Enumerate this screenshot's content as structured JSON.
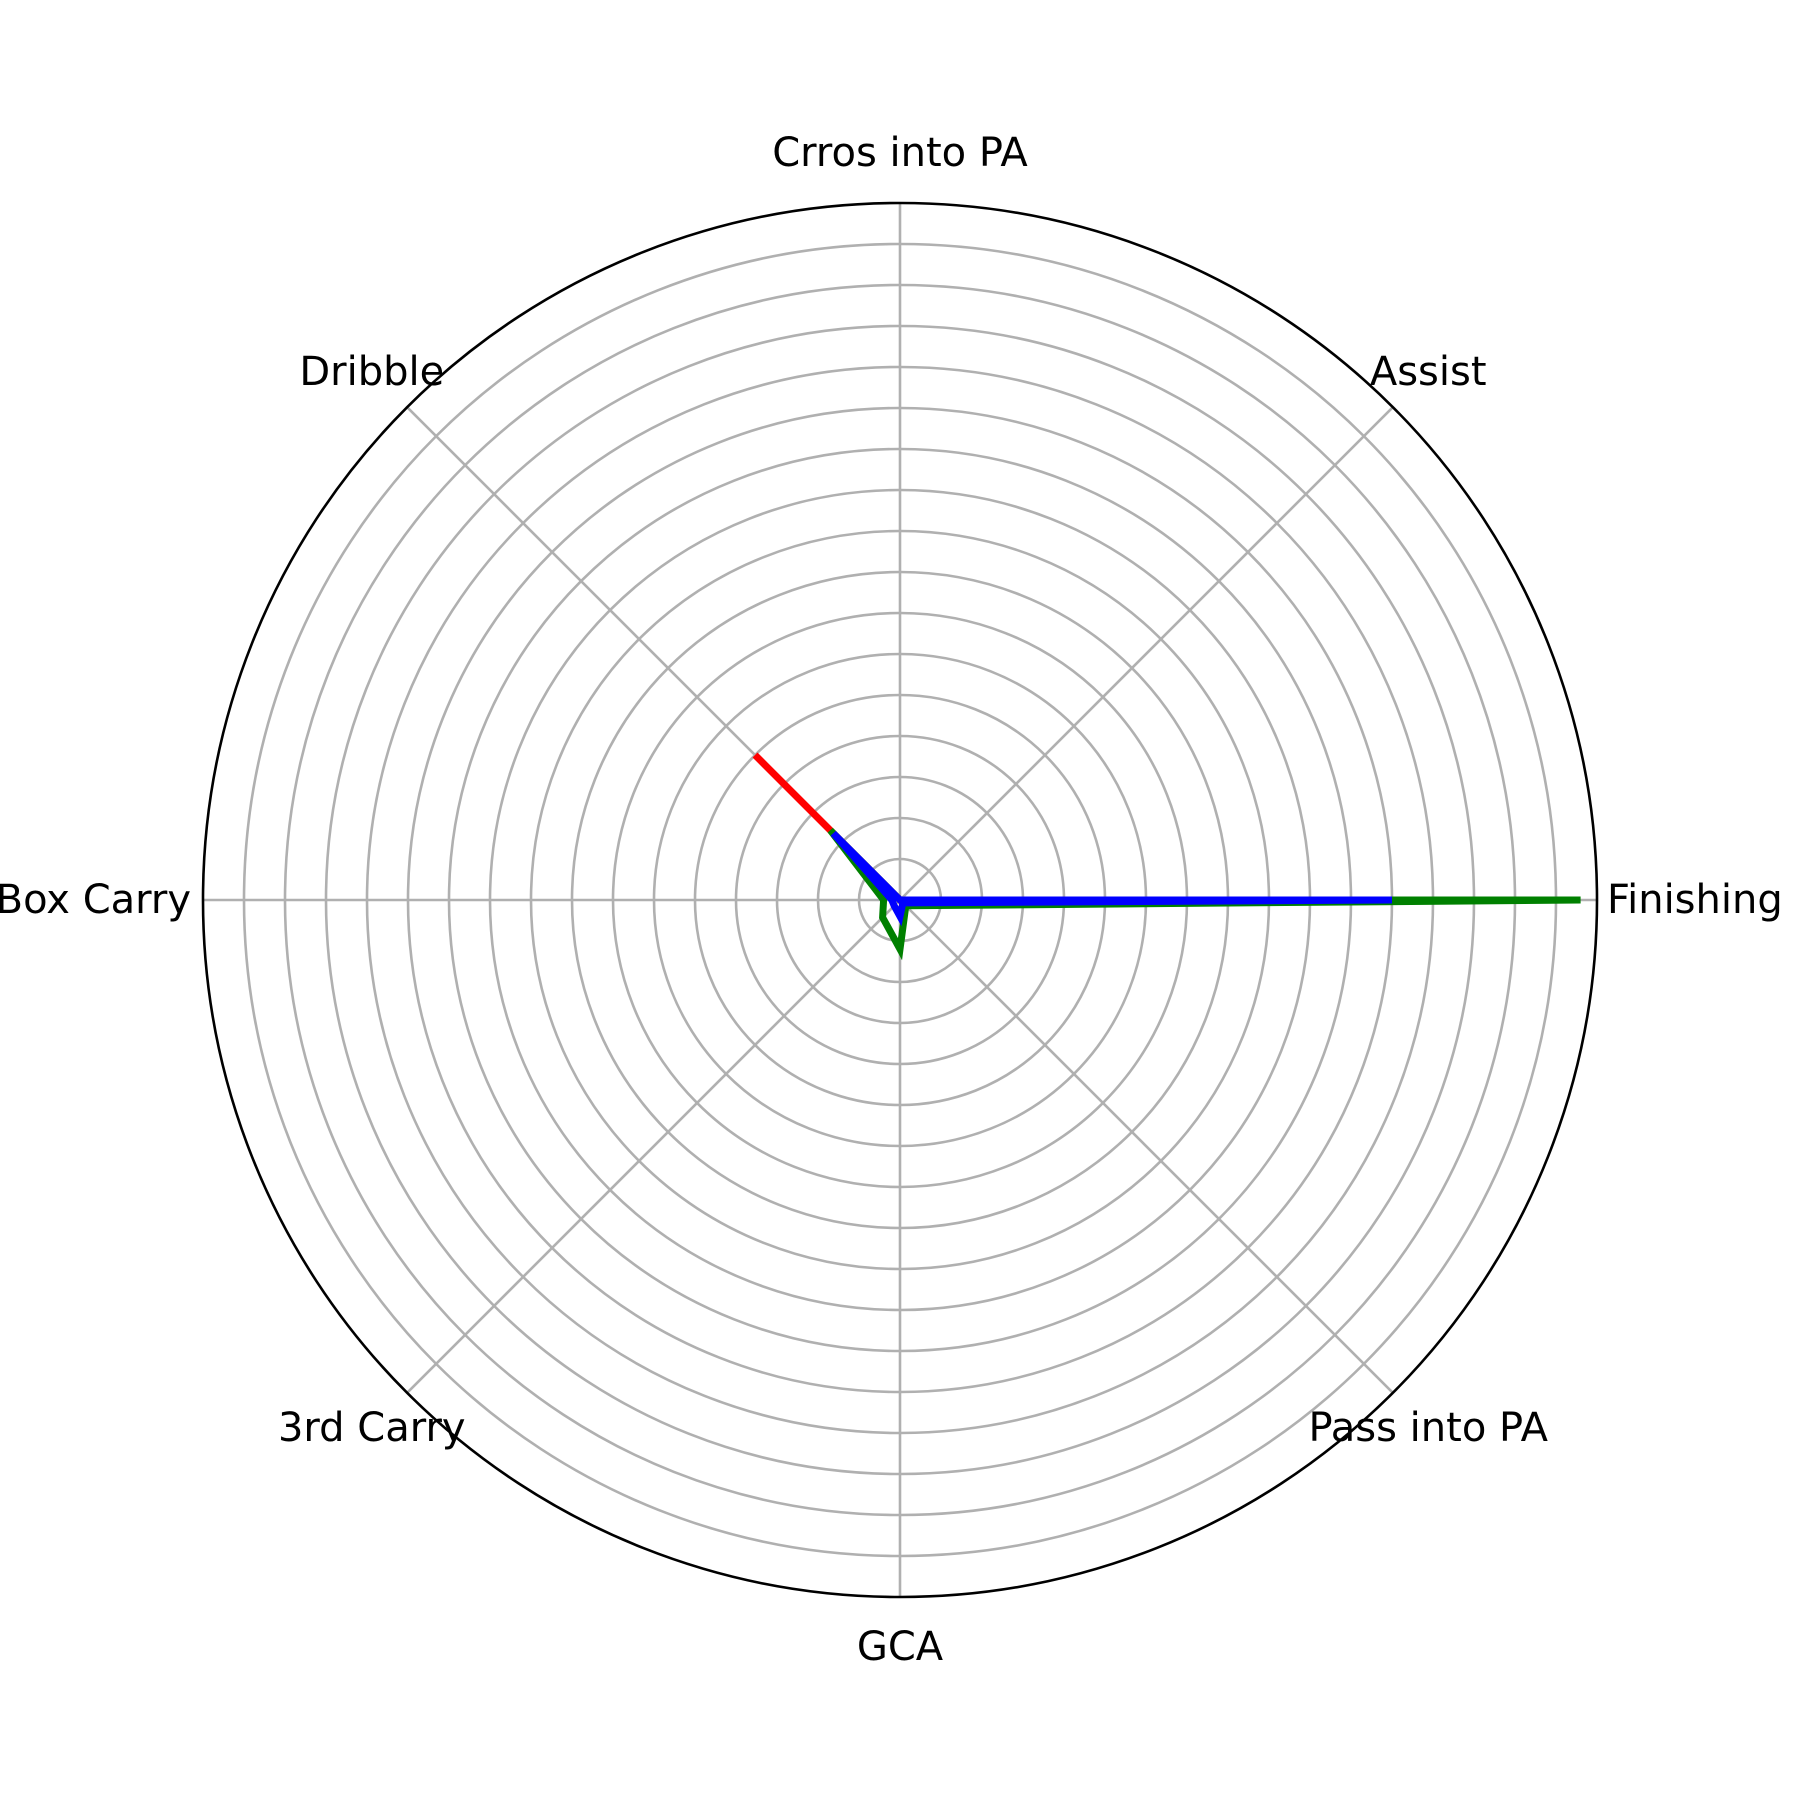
{
  "chart_data": {
    "type": "radar",
    "title": "",
    "categories": [
      "Finishing",
      "Assist",
      "Crros into PA",
      "Dribble",
      "Box Carry",
      "3rd Carry",
      "GCA",
      "Pass into PA"
    ],
    "rlim": [
      0,
      8.5
    ],
    "rgrid": [
      0.5,
      1,
      1.5,
      2,
      2.5,
      3,
      3.5,
      4,
      4.5,
      5,
      5.5,
      6,
      6.5,
      7,
      7.5,
      8
    ],
    "grid": true,
    "legend": false,
    "series": [
      {
        "color": "#ff0000",
        "values": [
          0.0,
          0.0,
          0.0,
          2.5,
          0.0,
          0.0,
          0.0,
          0.1
        ]
      },
      {
        "color": "#008000",
        "values": [
          8.3,
          0.0,
          0.0,
          1.2,
          0.2,
          0.3,
          0.6,
          0.1
        ]
      },
      {
        "color": "#0000ff",
        "values": [
          6.0,
          0.0,
          0.0,
          1.15,
          0.1,
          0.1,
          0.2,
          0.05
        ]
      }
    ]
  }
}
